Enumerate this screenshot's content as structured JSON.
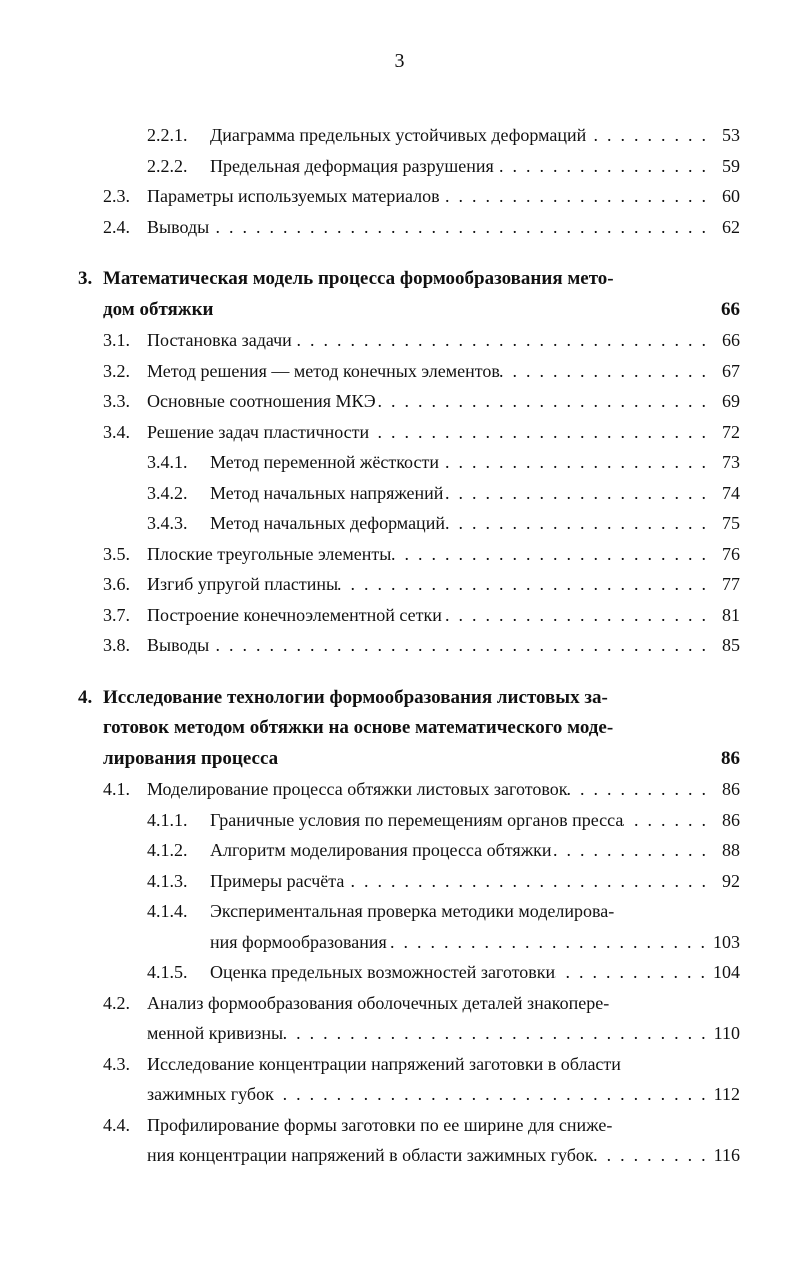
{
  "page_number": "3",
  "entries": [
    {
      "level": 3,
      "number": "2.2.1.",
      "lines": [
        "Диаграмма предельных устойчивых деформаций"
      ],
      "page": "53"
    },
    {
      "level": 3,
      "number": "2.2.2.",
      "lines": [
        "Предельная деформация разрушения"
      ],
      "page": "59"
    },
    {
      "level": 2,
      "number": "2.3.",
      "lines": [
        "Параметры используемых материалов"
      ],
      "page": "60"
    },
    {
      "level": 2,
      "number": "2.4.",
      "lines": [
        "Выводы"
      ],
      "page": "62"
    },
    {
      "level": 1,
      "number": "3.",
      "lines": [
        "Математическая модель процесса формообразования мето-",
        "дом обтяжки"
      ],
      "page": "66"
    },
    {
      "level": 2,
      "number": "3.1.",
      "lines": [
        "Постановка задачи"
      ],
      "page": "66"
    },
    {
      "level": 2,
      "number": "3.2.",
      "lines": [
        "Метод решения — метод конечных элементов"
      ],
      "page": "67"
    },
    {
      "level": 2,
      "number": "3.3.",
      "lines": [
        "Основные соотношения МКЭ"
      ],
      "page": "69"
    },
    {
      "level": 2,
      "number": "3.4.",
      "lines": [
        "Решение задач пластичности"
      ],
      "page": "72"
    },
    {
      "level": 3,
      "number": "3.4.1.",
      "lines": [
        "Метод переменной жёсткости"
      ],
      "page": "73"
    },
    {
      "level": 3,
      "number": "3.4.2.",
      "lines": [
        "Метод начальных напряжений"
      ],
      "page": "74"
    },
    {
      "level": 3,
      "number": "3.4.3.",
      "lines": [
        "Метод начальных деформаций"
      ],
      "page": "75"
    },
    {
      "level": 2,
      "number": "3.5.",
      "lines": [
        "Плоские треугольные элементы"
      ],
      "page": "76"
    },
    {
      "level": 2,
      "number": "3.6.",
      "lines": [
        "Изгиб упругой пластины"
      ],
      "page": "77"
    },
    {
      "level": 2,
      "number": "3.7.",
      "lines": [
        "Построение конечноэлементной сетки"
      ],
      "page": "81"
    },
    {
      "level": 2,
      "number": "3.8.",
      "lines": [
        "Выводы"
      ],
      "page": "85"
    },
    {
      "level": 1,
      "number": "4.",
      "lines": [
        "Исследование технологии формообразования листовых за-",
        "готовок методом обтяжки на основе математического моде-",
        "лирования процесса"
      ],
      "page": "86"
    },
    {
      "level": 2,
      "number": "4.1.",
      "lines": [
        "Моделирование процесса обтяжки листовых заготовок"
      ],
      "page": "86"
    },
    {
      "level": 3,
      "number": "4.1.1.",
      "lines": [
        "Граничные условия по перемещениям органов пресса"
      ],
      "page": "86"
    },
    {
      "level": 3,
      "number": "4.1.2.",
      "lines": [
        "Алгоритм моделирования процесса обтяжки"
      ],
      "page": "88"
    },
    {
      "level": 3,
      "number": "4.1.3.",
      "lines": [
        "Примеры расчёта"
      ],
      "page": "92"
    },
    {
      "level": 3,
      "number": "4.1.4.",
      "lines": [
        "Экспериментальная проверка методики моделирова-",
        "ния формообразования"
      ],
      "page": "103"
    },
    {
      "level": 3,
      "number": "4.1.5.",
      "lines": [
        "Оценка предельных возможностей заготовки"
      ],
      "page": "104"
    },
    {
      "level": 2,
      "number": "4.2.",
      "lines": [
        "Анализ формообразования оболочечных деталей знакопере-",
        "менной кривизны"
      ],
      "page": "110"
    },
    {
      "level": 2,
      "number": "4.3.",
      "lines": [
        "Исследование концентрации напряжений заготовки в области",
        "зажимных губок"
      ],
      "page": "112"
    },
    {
      "level": 2,
      "number": "4.4.",
      "lines": [
        "Профилирование формы заготовки по ее ширине для сниже-",
        "ния концентрации напряжений в области зажимных губок"
      ],
      "page": "116"
    }
  ]
}
